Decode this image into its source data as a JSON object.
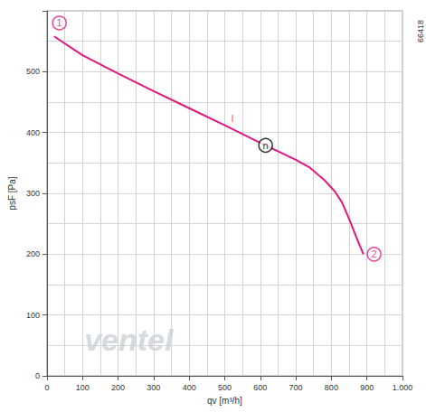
{
  "chart_data": {
    "type": "line",
    "x_label": "qv [m³/h]",
    "y_label": "psF [Pa]",
    "xlim": [
      0,
      1000
    ],
    "ylim": [
      0,
      600
    ],
    "xticks": [
      0,
      100,
      200,
      300,
      400,
      500,
      600,
      700,
      800,
      900,
      {
        "value": 1000,
        "label": "1.000"
      }
    ],
    "yticks": [
      0,
      100,
      200,
      300,
      400,
      500
    ],
    "grid": true,
    "series": [
      {
        "name": "I",
        "color": "#e0187d",
        "marker": "none",
        "line_style": "solid",
        "x": [
          20,
          100,
          200,
          300,
          400,
          500,
          600,
          700,
          740,
          780,
          810,
          830,
          850,
          870,
          890
        ],
        "values": [
          558,
          527,
          497,
          468,
          440,
          412,
          383,
          355,
          342,
          322,
          303,
          285,
          258,
          228,
          200
        ]
      }
    ],
    "annotations": [
      {
        "text": "1",
        "x": 35,
        "y": 580,
        "marker": "circle",
        "color": "#e0187d"
      },
      {
        "text": "2",
        "x": 920,
        "y": 200,
        "marker": "circle",
        "color": "#e0187d"
      },
      {
        "text": "I",
        "x": 522,
        "y": 423,
        "marker": "none",
        "color": "#e0187d"
      },
      {
        "text": "n",
        "x": 615,
        "y": 379,
        "marker": "circle",
        "color": "#000000"
      },
      {
        "text": "ventel",
        "x": 230,
        "y": 60,
        "marker": "none",
        "color": "#c9d0d6"
      },
      {
        "text": "66418",
        "marker": "none",
        "color": "#333333"
      }
    ]
  }
}
